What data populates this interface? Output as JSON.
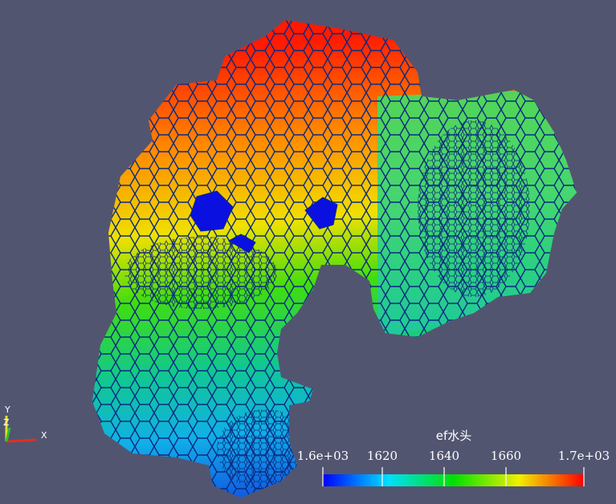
{
  "colorbar": {
    "title": "ef水头",
    "ticks": [
      "1.6e+03",
      "1620",
      "1640",
      "1660",
      "1.7e+03"
    ]
  },
  "axes": {
    "y": "Y",
    "z": "Z",
    "x": "X"
  }
}
